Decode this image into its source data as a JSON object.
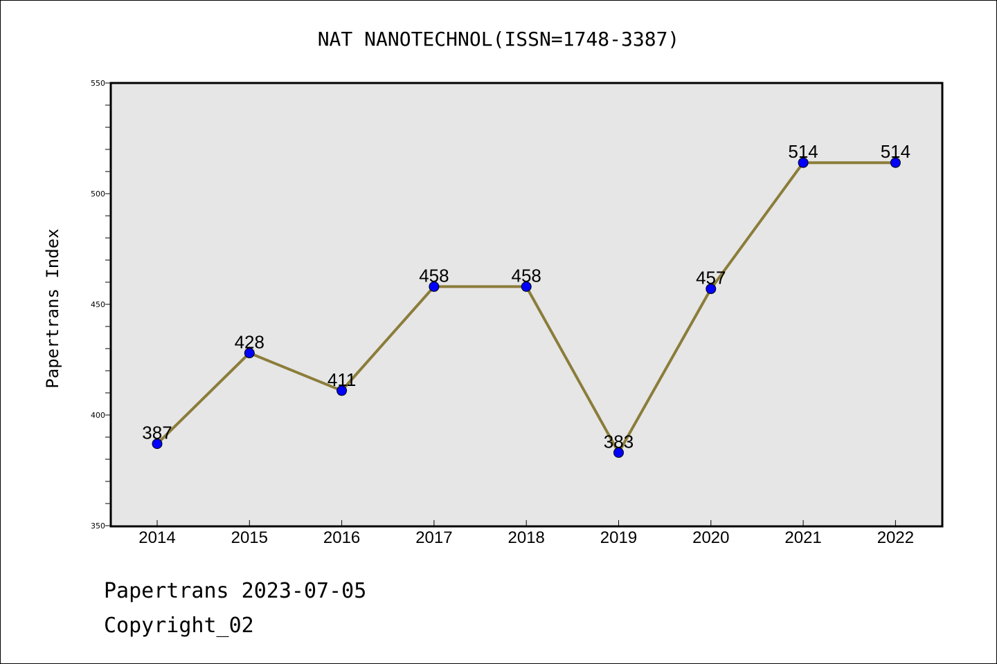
{
  "chart_data": {
    "type": "line",
    "title": "NAT NANOTECHNOL(ISSN=1748-3387)",
    "xlabel": "",
    "ylabel": "Papertrans Index",
    "categories": [
      "2014",
      "2015",
      "2016",
      "2017",
      "2018",
      "2019",
      "2020",
      "2021",
      "2022"
    ],
    "series": [
      {
        "values": [
          387,
          428,
          411,
          458,
          458,
          383,
          457,
          514,
          514
        ]
      }
    ],
    "ylim": [
      350,
      550
    ],
    "yticks": [
      "350",
      "400",
      "450",
      "500",
      "550"
    ],
    "y_minor_step": 10,
    "data_labels": [
      "387",
      "428",
      "411",
      "458",
      "458",
      "383",
      "457",
      "514",
      "514"
    ],
    "grid": false,
    "colors": {
      "line": "#8b7d3a",
      "marker": "#0000ff",
      "plot_background": "#e6e6e6"
    }
  },
  "footer": {
    "line1": "Papertrans 2023-07-05",
    "line2": "Copyright_02"
  }
}
